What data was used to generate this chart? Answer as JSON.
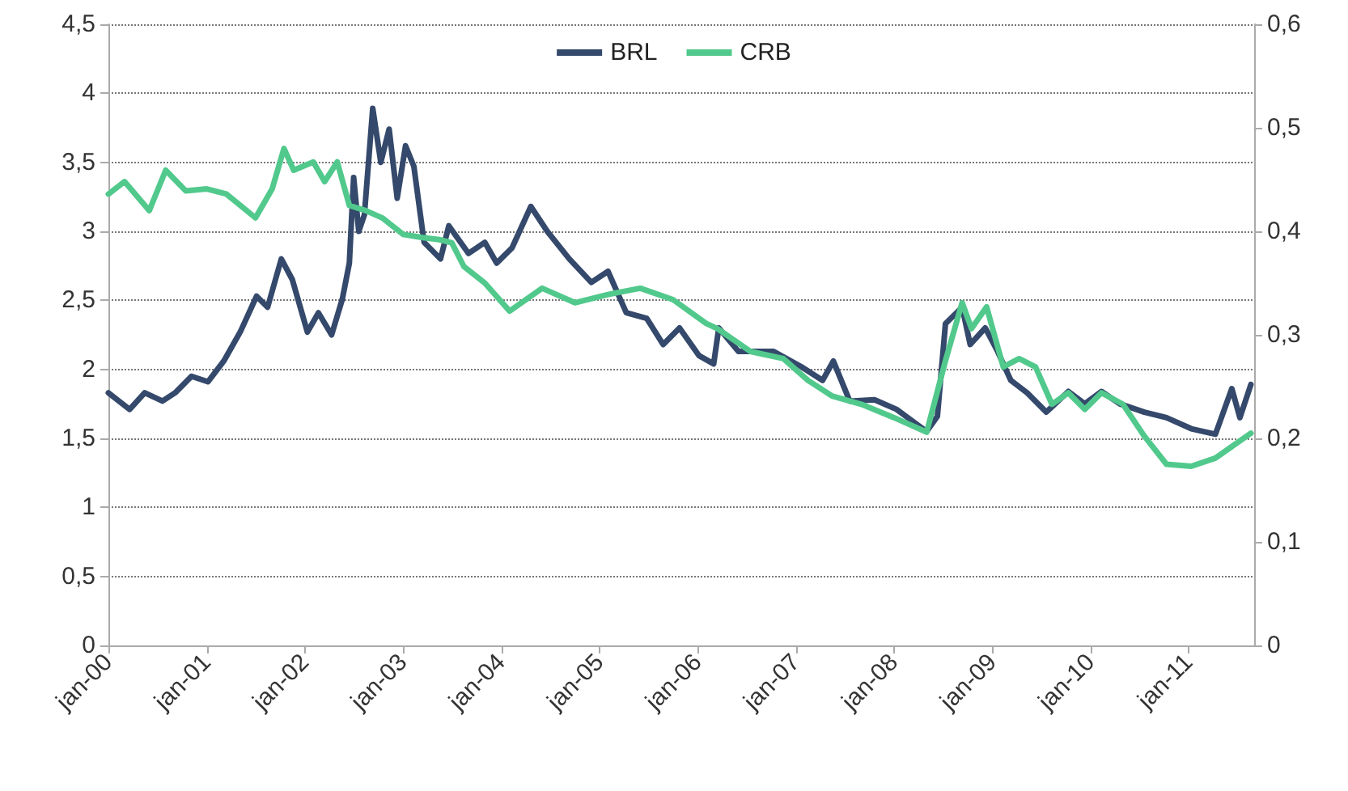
{
  "chart_data": {
    "type": "line",
    "xlim": [
      "2000-01",
      "2011-09"
    ],
    "xticks": [
      {
        "value": "2000-01",
        "label": "jan-00"
      },
      {
        "value": "2001-01",
        "label": "jan-01"
      },
      {
        "value": "2002-01",
        "label": "jan-02"
      },
      {
        "value": "2003-01",
        "label": "jan-03"
      },
      {
        "value": "2004-01",
        "label": "jan-04"
      },
      {
        "value": "2005-01",
        "label": "jan-05"
      },
      {
        "value": "2006-01",
        "label": "jan-06"
      },
      {
        "value": "2007-01",
        "label": "jan-07"
      },
      {
        "value": "2008-01",
        "label": "jan-08"
      },
      {
        "value": "2009-01",
        "label": "jan-09"
      },
      {
        "value": "2010-01",
        "label": "jan-10"
      },
      {
        "value": "2011-01",
        "label": "jan-11"
      }
    ],
    "ylim": [
      0,
      4.5
    ],
    "yticks": [
      0,
      {
        "value": 0.5,
        "label": "0,5"
      },
      1,
      {
        "value": 1.5,
        "label": "1,5"
      },
      2,
      {
        "value": 2.5,
        "label": "2,5"
      },
      3,
      {
        "value": 3.5,
        "label": "3,5"
      },
      4,
      {
        "value": 4.5,
        "label": "4,5"
      }
    ],
    "y2lim": [
      0,
      0.6
    ],
    "y2ticks": [
      0,
      {
        "value": 0.1,
        "label": "0,1"
      },
      {
        "value": 0.2,
        "label": "0,2"
      },
      {
        "value": 0.3,
        "label": "0,3"
      },
      {
        "value": 0.4,
        "label": "0,4"
      },
      {
        "value": 0.5,
        "label": "0,5"
      },
      {
        "value": 0.6,
        "label": "0,6"
      }
    ],
    "grid": "y",
    "legend": "top",
    "marker": "none",
    "line_style": "solid",
    "series": [
      {
        "name": "BRL",
        "color": "#34496b",
        "x": [
          "2000-01-01",
          "2000-03-20",
          "2000-05-15",
          "2000-07-20",
          "2000-09-05",
          "2000-11-05",
          "2001-01-05",
          "2001-03-05",
          "2001-05-05",
          "2001-07-05",
          "2001-08-15",
          "2001-10-05",
          "2001-11-15",
          "2002-01-10",
          "2002-02-20",
          "2002-04-10",
          "2002-05-20",
          "2002-06-15",
          "2002-07-01",
          "2002-07-20",
          "2002-08-10",
          "2002-09-10",
          "2002-10-10",
          "2002-11-10",
          "2002-12-10",
          "2003-01-10",
          "2003-02-10",
          "2003-03-20",
          "2003-05-20",
          "2003-06-20",
          "2003-09-01",
          "2003-11-01",
          "2003-12-15",
          "2004-02-10",
          "2004-04-20",
          "2004-06-20",
          "2004-09-10",
          "2004-12-01",
          "2005-02-01",
          "2005-04-10",
          "2005-06-25",
          "2005-08-25",
          "2005-10-25",
          "2006-01-05",
          "2006-03-01",
          "2006-03-20",
          "2006-06-01",
          "2006-10-10",
          "2007-01-20",
          "2007-04-10",
          "2007-05-20",
          "2007-07-20",
          "2007-10-20",
          "2008-01-10",
          "2008-05-01",
          "2008-06-10",
          "2008-07-10",
          "2008-09-10",
          "2008-10-10",
          "2008-12-05",
          "2009-01-20",
          "2009-03-10",
          "2009-05-10",
          "2009-07-20",
          "2009-10-10",
          "2009-12-10",
          "2010-02-10",
          "2010-04-20",
          "2010-07-20",
          "2010-10-10",
          "2011-01-10",
          "2011-04-10",
          "2011-06-10",
          "2011-07-10",
          "2011-08-20"
        ],
        "values": [
          1.83,
          1.71,
          1.83,
          1.77,
          1.83,
          1.95,
          1.91,
          2.06,
          2.27,
          2.53,
          2.45,
          2.8,
          2.65,
          2.27,
          2.41,
          2.25,
          2.51,
          2.77,
          3.39,
          3.0,
          3.12,
          3.89,
          3.5,
          3.74,
          3.24,
          3.62,
          3.47,
          2.92,
          2.8,
          3.04,
          2.84,
          2.92,
          2.77,
          2.88,
          3.18,
          3.0,
          2.8,
          2.63,
          2.71,
          2.41,
          2.37,
          2.18,
          2.3,
          2.1,
          2.04,
          2.3,
          2.13,
          2.13,
          2.02,
          1.92,
          2.06,
          1.77,
          1.78,
          1.71,
          1.55,
          1.66,
          2.33,
          2.45,
          2.18,
          2.3,
          2.13,
          1.92,
          1.83,
          1.69,
          1.84,
          1.75,
          1.84,
          1.75,
          1.69,
          1.65,
          1.57,
          1.53,
          1.86,
          1.65,
          1.89
        ]
      },
      {
        "name": "CRB",
        "color": "#52c98c",
        "axis": "y2",
        "x": [
          "2000-01-01",
          "2000-03-01",
          "2000-06-01",
          "2000-08-01",
          "2000-10-15",
          "2001-01-01",
          "2001-03-15",
          "2001-07-01",
          "2001-09-01",
          "2001-10-15",
          "2001-11-20",
          "2002-02-01",
          "2002-03-15",
          "2002-05-01",
          "2002-06-15",
          "2002-08-15",
          "2002-10-15",
          "2003-01-01",
          "2003-03-15",
          "2003-05-15",
          "2003-07-01",
          "2003-08-15",
          "2003-11-01",
          "2004-02-01",
          "2004-06-01",
          "2004-10-01",
          "2005-02-01",
          "2005-06-01",
          "2005-10-01",
          "2006-02-01",
          "2006-03-15",
          "2006-07-15",
          "2006-11-15",
          "2007-02-15",
          "2007-05-15",
          "2007-09-01",
          "2008-01-01",
          "2008-05-01",
          "2008-07-10",
          "2008-09-10",
          "2008-10-15",
          "2008-12-10",
          "2009-02-10",
          "2009-04-10",
          "2009-06-10",
          "2009-08-10",
          "2009-10-10",
          "2009-12-10",
          "2010-02-10",
          "2010-05-01",
          "2010-07-20",
          "2010-10-10",
          "2011-01-10",
          "2011-04-10",
          "2011-08-20"
        ],
        "values": [
          0.436,
          0.448,
          0.42,
          0.459,
          0.439,
          0.441,
          0.436,
          0.413,
          0.441,
          0.48,
          0.459,
          0.467,
          0.448,
          0.467,
          0.425,
          0.42,
          0.413,
          0.397,
          0.394,
          0.392,
          0.389,
          0.366,
          0.35,
          0.323,
          0.345,
          0.331,
          0.339,
          0.345,
          0.334,
          0.311,
          0.306,
          0.284,
          0.277,
          0.256,
          0.241,
          0.233,
          0.22,
          0.206,
          0.275,
          0.331,
          0.306,
          0.327,
          0.269,
          0.277,
          0.269,
          0.233,
          0.244,
          0.228,
          0.244,
          0.233,
          0.202,
          0.175,
          0.173,
          0.181,
          0.205
        ]
      }
    ]
  }
}
